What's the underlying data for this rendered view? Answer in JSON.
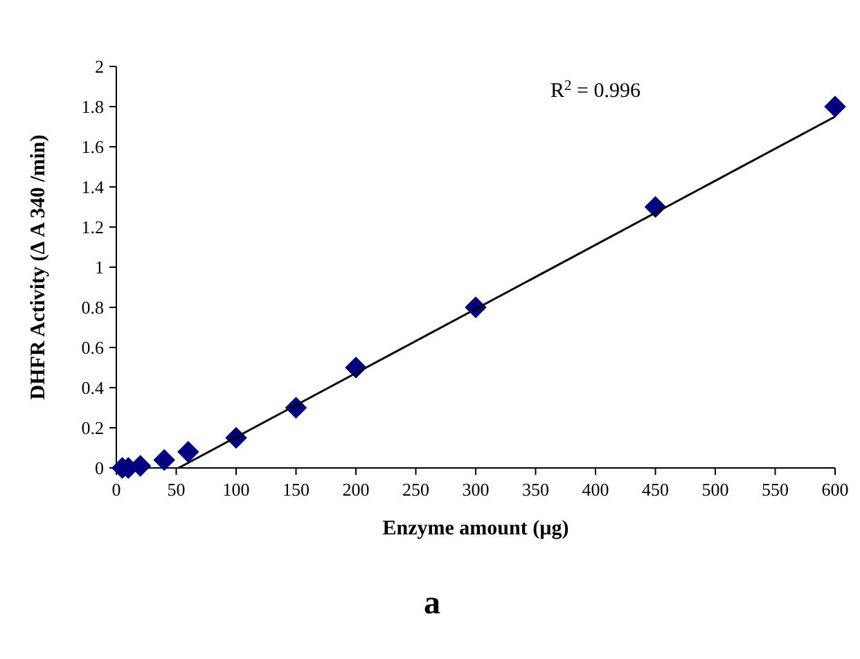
{
  "chart_data": {
    "type": "scatter",
    "xlabel": "Enzyme amount (µg)",
    "ylabel": "DHFR Activity (Δ A 340 /min)",
    "annotations": [
      "R$^{2}$ = 0.996",
      "a"
    ],
    "xlim": [
      0,
      600
    ],
    "xticks": [
      0,
      50,
      100,
      150,
      200,
      250,
      300,
      350,
      400,
      450,
      500,
      550,
      600
    ],
    "ylim": [
      0,
      2
    ],
    "yticks": [
      0,
      0.2,
      0.4,
      0.6,
      0.8,
      1,
      1.2,
      1.4,
      1.6,
      1.8,
      2
    ],
    "grid": false,
    "marker": "diamond",
    "series": [
      {
        "color": "#000080",
        "x": [
          5,
          10,
          20,
          40,
          60,
          100,
          150,
          200,
          300,
          450,
          600
        ],
        "values": [
          0,
          0,
          0.01,
          0.04,
          0.08,
          0.15,
          0.3,
          0.5,
          0.8,
          1.3,
          1.8
        ]
      },
      {
        "type": "line",
        "color": "#000000",
        "marker": "none",
        "x": [
          52,
          600
        ],
        "values": [
          0,
          1.75
        ]
      }
    ]
  }
}
